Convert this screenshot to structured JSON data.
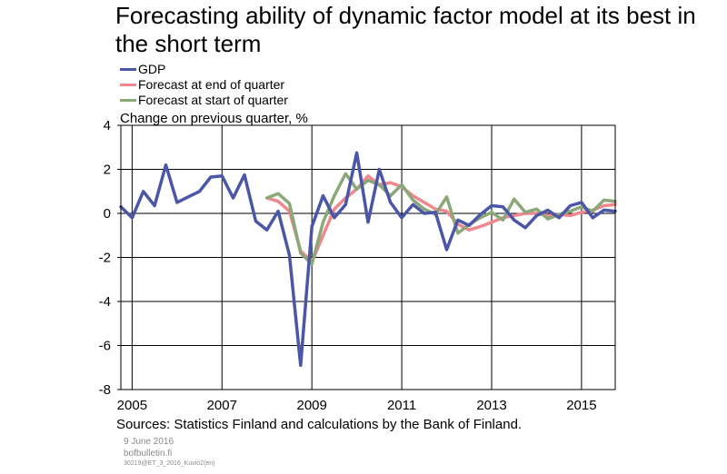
{
  "chart_data": {
    "type": "line",
    "title": "Forecasting ability of dynamic factor model at its best in the short term",
    "ylabel": "Change on previous quarter, %",
    "source": "Sources: Statistics Finland and calculations by the Bank of Finland.",
    "ylim": [
      -8,
      4
    ],
    "yticks": [
      "4",
      "2",
      "0",
      "-2",
      "-4",
      "-6",
      "-8"
    ],
    "xlim": [
      2004.75,
      2015.75
    ],
    "xticks": [
      "2005",
      "2007",
      "2009",
      "2011",
      "2013",
      "2015"
    ],
    "grid": true,
    "legend_position": "top-left",
    "series": [
      {
        "name": "GDP",
        "color": "#4b56a8",
        "x": [
          2004.75,
          2005.0,
          2005.25,
          2005.5,
          2005.75,
          2006.0,
          2006.25,
          2006.5,
          2006.75,
          2007.0,
          2007.25,
          2007.5,
          2007.75,
          2008.0,
          2008.25,
          2008.5,
          2008.75,
          2009.0,
          2009.25,
          2009.5,
          2009.75,
          2010.0,
          2010.25,
          2010.5,
          2010.75,
          2011.0,
          2011.25,
          2011.5,
          2011.75,
          2012.0,
          2012.25,
          2012.5,
          2012.75,
          2013.0,
          2013.25,
          2013.5,
          2013.75,
          2014.0,
          2014.25,
          2014.5,
          2014.75,
          2015.0,
          2015.25,
          2015.5,
          2015.75
        ],
        "values": [
          0.3,
          -0.2,
          1.0,
          0.35,
          2.2,
          0.5,
          0.75,
          1.0,
          1.65,
          1.7,
          0.7,
          1.75,
          -0.35,
          -0.75,
          0.1,
          -1.9,
          -6.9,
          -0.6,
          0.8,
          -0.2,
          0.4,
          2.75,
          -0.4,
          2.0,
          0.5,
          -0.2,
          0.4,
          0.0,
          0.05,
          -1.65,
          -0.3,
          -0.55,
          -0.05,
          0.35,
          0.3,
          -0.3,
          -0.65,
          -0.1,
          0.15,
          -0.2,
          0.35,
          0.5,
          -0.2,
          0.15,
          0.1
        ]
      },
      {
        "name": "Forecast at end of quarter",
        "color": "#f0878e",
        "x": [
          2008.0,
          2008.25,
          2008.5,
          2008.75,
          2009.0,
          2009.25,
          2009.5,
          2009.75,
          2010.0,
          2010.25,
          2010.5,
          2010.75,
          2011.0,
          2011.25,
          2011.5,
          2011.75,
          2012.0,
          2012.25,
          2012.5,
          2012.75,
          2013.0,
          2013.25,
          2013.5,
          2013.75,
          2014.0,
          2014.25,
          2014.5,
          2014.75,
          2015.0,
          2015.25,
          2015.5,
          2015.75
        ],
        "values": [
          0.7,
          0.55,
          0.1,
          -1.7,
          -2.2,
          -1.0,
          0.2,
          0.7,
          1.1,
          1.7,
          1.3,
          1.4,
          1.2,
          0.8,
          0.5,
          0.2,
          0.1,
          -0.5,
          -0.75,
          -0.6,
          -0.4,
          -0.2,
          -0.1,
          0.0,
          0.0,
          -0.1,
          -0.05,
          -0.1,
          0.05,
          0.15,
          0.35,
          0.4
        ]
      },
      {
        "name": "Forecast at start of quarter",
        "color": "#8aa878",
        "x": [
          2008.0,
          2008.25,
          2008.5,
          2008.75,
          2009.0,
          2009.25,
          2009.5,
          2009.75,
          2010.0,
          2010.25,
          2010.5,
          2010.75,
          2011.0,
          2011.25,
          2011.5,
          2011.75,
          2012.0,
          2012.25,
          2012.5,
          2012.75,
          2013.0,
          2013.25,
          2013.5,
          2013.75,
          2014.0,
          2014.25,
          2014.5,
          2014.75,
          2015.0,
          2015.25,
          2015.5,
          2015.75
        ],
        "values": [
          0.7,
          0.9,
          0.45,
          -1.8,
          -2.3,
          -0.4,
          0.8,
          1.8,
          1.1,
          1.5,
          1.3,
          0.8,
          1.3,
          0.6,
          0.2,
          -0.05,
          0.75,
          -0.9,
          -0.5,
          -0.2,
          0.05,
          -0.3,
          0.65,
          0.05,
          0.2,
          -0.25,
          -0.05,
          0.1,
          0.3,
          0.1,
          0.6,
          0.55
        ]
      }
    ]
  },
  "footer": {
    "date": "9 June 2016",
    "site": "bofbulletin.fi",
    "code": "30219@ET_3_2016_Kuvio2(en)"
  }
}
